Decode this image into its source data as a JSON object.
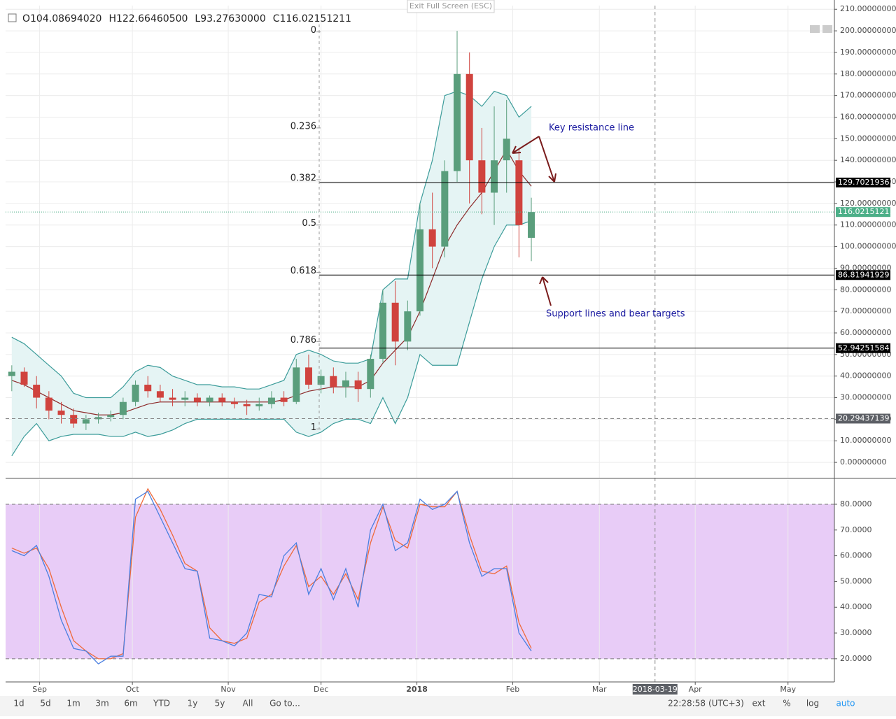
{
  "ui": {
    "exit": "Exit Full Screen (ESC)",
    "legend": [
      "O104.08694020",
      "H122.66460500",
      "L93.27630000",
      "C116.02151211"
    ],
    "ranges": [
      "1d",
      "5d",
      "1m",
      "3m",
      "6m",
      "YTD",
      "1y",
      "5y",
      "All",
      "Go to..."
    ],
    "time": "22:28:58",
    "timezone": "(UTC+3)",
    "toggles": [
      "ext",
      "%",
      "log",
      "auto"
    ],
    "crosshair": {
      "date": "2018-03-19",
      "price": 20.29437139
    }
  },
  "chart_data": [
    {
      "type": "candlestick",
      "x": [
        "2017-08-23",
        "2017-08-27",
        "2017-08-31",
        "2017-09-04",
        "2017-09-08",
        "2017-09-12",
        "2017-09-16",
        "2017-09-20",
        "2017-09-24",
        "2017-09-28",
        "2017-10-02",
        "2017-10-06",
        "2017-10-10",
        "2017-10-14",
        "2017-10-18",
        "2017-10-22",
        "2017-10-26",
        "2017-10-30",
        "2017-11-03",
        "2017-11-07",
        "2017-11-11",
        "2017-11-15",
        "2017-11-19",
        "2017-11-23",
        "2017-11-27",
        "2017-12-01",
        "2017-12-05",
        "2017-12-09",
        "2017-12-13",
        "2017-12-17",
        "2017-12-21",
        "2017-12-25",
        "2017-12-29",
        "2018-01-02",
        "2018-01-06",
        "2018-01-10",
        "2018-01-14",
        "2018-01-18",
        "2018-01-22",
        "2018-01-26",
        "2018-01-30",
        "2018-02-03",
        "2018-02-07"
      ],
      "open": [
        40,
        42,
        36,
        30,
        24,
        22,
        18,
        20,
        21,
        22,
        28,
        36,
        33,
        30,
        29,
        30,
        28,
        30,
        28,
        27,
        26,
        27,
        30,
        28,
        44,
        36,
        40,
        35,
        38,
        34,
        48,
        74,
        56,
        70,
        108,
        100,
        135,
        180,
        140,
        125,
        140,
        140,
        104.0869402
      ],
      "high": [
        45,
        44,
        40,
        33,
        28,
        25,
        22,
        23,
        24,
        30,
        38,
        40,
        36,
        34,
        33,
        32,
        31,
        32,
        30,
        29,
        30,
        33,
        33,
        48,
        50,
        43,
        44,
        42,
        42,
        50,
        80,
        84,
        75,
        120,
        125,
        140,
        200,
        190,
        155,
        165,
        168,
        145,
        122.664605
      ],
      "low": [
        33,
        35,
        25,
        20,
        18,
        16,
        15,
        18,
        19,
        20,
        26,
        30,
        28,
        26,
        26,
        26,
        26,
        26,
        25,
        22,
        24,
        25,
        26,
        27,
        34,
        32,
        32,
        30,
        28,
        30,
        46,
        45,
        52,
        68,
        90,
        95,
        130,
        120,
        115,
        110,
        125,
        95,
        93.2763
      ],
      "close": [
        42,
        36,
        30,
        24,
        22,
        18,
        20,
        21,
        22,
        28,
        36,
        33,
        30,
        29,
        30,
        28,
        30,
        28,
        27,
        26,
        27,
        30,
        28,
        44,
        36,
        40,
        35,
        38,
        34,
        48,
        74,
        56,
        70,
        108,
        100,
        135,
        180,
        140,
        125,
        140,
        150,
        110,
        116.02151211
      ],
      "up_color": "#5a9e7c",
      "down_color": "#d0433e",
      "bands": {
        "upper": [
          58,
          55,
          50,
          45,
          40,
          32,
          30,
          30,
          30,
          35,
          42,
          45,
          44,
          40,
          38,
          36,
          36,
          35,
          35,
          34,
          34,
          36,
          38,
          50,
          52,
          50,
          47,
          46,
          46,
          48,
          80,
          85,
          85,
          120,
          140,
          170,
          172,
          170,
          165,
          172,
          170,
          160,
          165
        ],
        "middle": [
          38,
          36,
          33,
          30,
          27,
          24,
          23,
          22,
          22,
          23,
          25,
          27,
          28,
          28,
          28,
          28,
          28,
          28,
          28,
          28,
          28,
          28,
          29,
          31,
          33,
          34,
          35,
          35,
          35,
          38,
          46,
          52,
          58,
          70,
          85,
          100,
          110,
          118,
          125,
          135,
          145,
          135,
          128
        ],
        "lower": [
          3,
          12,
          18,
          10,
          12,
          13,
          13,
          13,
          12,
          12,
          14,
          12,
          13,
          15,
          18,
          20,
          20,
          20,
          20,
          20,
          20,
          20,
          20,
          14,
          12,
          14,
          18,
          20,
          20,
          18,
          30,
          18,
          30,
          50,
          45,
          45,
          45,
          65,
          85,
          100,
          110,
          110,
          112
        ],
        "line_color": "#3c9c9a",
        "middle_color": "#8d2a2a",
        "fill": "#e5f4f4"
      },
      "xlim": [
        "2017-08-21",
        "2018-05-16"
      ],
      "xticks": [
        {
          "value": "2017-09-01",
          "label": "Sep"
        },
        {
          "value": "2017-10-01",
          "label": "Oct"
        },
        {
          "value": "2017-11-01",
          "label": "Nov"
        },
        {
          "value": "2017-12-01",
          "label": "Dec"
        },
        {
          "value": "2018-01-01",
          "label": "2018"
        },
        {
          "value": "2018-02-01",
          "label": "Feb"
        },
        {
          "value": "2018-03-01",
          "label": "Mar"
        },
        {
          "value": "2018-04-01",
          "label": "Apr"
        },
        {
          "value": "2018-05-01",
          "label": "May"
        }
      ],
      "ylim": [
        -7.1,
        211.7
      ],
      "yticks": [
        {
          "value": 0,
          "label": "0.00000000"
        },
        {
          "value": 10,
          "label": "10.00000000"
        },
        {
          "value": 20,
          "label": "20.00000000"
        },
        {
          "value": 30,
          "label": "30.00000000"
        },
        {
          "value": 40,
          "label": "40.00000000"
        },
        {
          "value": 50,
          "label": "50.00000000"
        },
        {
          "value": 60,
          "label": "60.00000000"
        },
        {
          "value": 70,
          "label": "70.00000000"
        },
        {
          "value": 80,
          "label": "80.00000000"
        },
        {
          "value": 90,
          "label": "90.00000000"
        },
        {
          "value": 100,
          "label": "100.00000000"
        },
        {
          "value": 110,
          "label": "110.00000000"
        },
        {
          "value": 120,
          "label": "120.00000000"
        },
        {
          "value": 130,
          "label": "130.00000000"
        },
        {
          "value": 140,
          "label": "140.00000000"
        },
        {
          "value": 150,
          "label": "150.00000000"
        },
        {
          "value": 160,
          "label": "160.00000000"
        },
        {
          "value": 170,
          "label": "170.00000000"
        },
        {
          "value": 180,
          "label": "180.00000000"
        },
        {
          "value": 190,
          "label": "190.00000000"
        },
        {
          "value": 200,
          "label": "200.00000000"
        },
        {
          "value": 210,
          "label": "210.00000000"
        }
      ],
      "grid": true,
      "fib": {
        "ratios": [
          0,
          0.236,
          0.382,
          0.5,
          0.618,
          0.786,
          1
        ],
        "prices": [
          199.5,
          155,
          131,
          110,
          88,
          56,
          15.5
        ]
      },
      "levels": [
        129.70219361,
        86.81941929,
        52.94251584
      ],
      "last_price": 116.02151211,
      "last_color": "#4caf88",
      "annotations": [
        "Key resistance line",
        "Support lines and bear targets"
      ]
    },
    {
      "type": "line",
      "x": [
        "2017-08-23",
        "2017-08-27",
        "2017-08-31",
        "2017-09-04",
        "2017-09-08",
        "2017-09-12",
        "2017-09-16",
        "2017-09-20",
        "2017-09-24",
        "2017-09-28",
        "2017-10-02",
        "2017-10-06",
        "2017-10-10",
        "2017-10-14",
        "2017-10-18",
        "2017-10-22",
        "2017-10-26",
        "2017-10-30",
        "2017-11-03",
        "2017-11-07",
        "2017-11-11",
        "2017-11-15",
        "2017-11-19",
        "2017-11-23",
        "2017-11-27",
        "2017-12-01",
        "2017-12-05",
        "2017-12-09",
        "2017-12-13",
        "2017-12-17",
        "2017-12-21",
        "2017-12-25",
        "2017-12-29",
        "2018-01-02",
        "2018-01-06",
        "2018-01-10",
        "2018-01-14",
        "2018-01-18",
        "2018-01-22",
        "2018-01-26",
        "2018-01-30",
        "2018-02-03",
        "2018-02-07"
      ],
      "series": [
        {
          "color": "#4a7fe0",
          "values": [
            62,
            60,
            64,
            52,
            35,
            24,
            23,
            18,
            21,
            21,
            82,
            85,
            75,
            65,
            55,
            54,
            28,
            27,
            25,
            30,
            45,
            44,
            60,
            65,
            45,
            55,
            43,
            55,
            40,
            70,
            80,
            62,
            65,
            82,
            78,
            80,
            85,
            65,
            52,
            55,
            55,
            30,
            23
          ]
        },
        {
          "color": "#ef6a3a",
          "values": [
            63,
            61,
            63,
            55,
            40,
            27,
            23,
            20,
            20,
            22,
            75,
            86,
            78,
            68,
            57,
            54,
            32,
            27,
            26,
            28,
            42,
            45,
            56,
            64,
            48,
            52,
            45,
            53,
            43,
            65,
            79,
            66,
            63,
            80,
            79,
            79,
            85,
            68,
            54,
            53,
            56,
            34,
            24
          ]
        }
      ],
      "xlim": [
        "2017-08-21",
        "2018-05-16"
      ],
      "ylim": [
        11.0,
        89.5
      ],
      "yticks": [
        {
          "value": 20,
          "label": "20.0000"
        },
        {
          "value": 30,
          "label": "30.0000"
        },
        {
          "value": 40,
          "label": "40.0000"
        },
        {
          "value": 50,
          "label": "50.0000"
        },
        {
          "value": 60,
          "label": "60.0000"
        },
        {
          "value": 70,
          "label": "70.0000"
        },
        {
          "value": 80,
          "label": "80.0000"
        }
      ],
      "band": [
        20,
        80
      ],
      "band_fill": "#e8ccf7"
    }
  ]
}
